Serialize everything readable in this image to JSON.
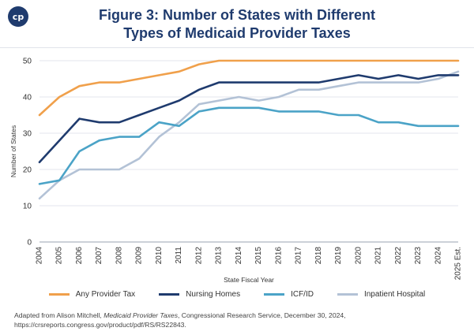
{
  "header": {
    "logo_text": "cp",
    "title_line1": "Figure 3: Number of States with Different",
    "title_line2": "Types of Medicaid Provider Taxes"
  },
  "chart_data": {
    "type": "line",
    "title": "Figure 3: Number of States with Different Types of Medicaid Provider Taxes",
    "xlabel": "State Fiscal Year",
    "ylabel": "Number of States",
    "ylim": [
      0,
      50
    ],
    "yticks": [
      0,
      10,
      20,
      30,
      40,
      50
    ],
    "grid": true,
    "legend": "bottom",
    "categories": [
      "2004",
      "2005",
      "2006",
      "2007",
      "2008",
      "2009",
      "2010",
      "2011",
      "2012",
      "2013",
      "2014",
      "2015",
      "2016",
      "2017",
      "2018",
      "2019",
      "2020",
      "2021",
      "2022",
      "2023",
      "2024",
      "2025 Est."
    ],
    "series": [
      {
        "name": "Any Provider Tax",
        "color": "#f0a04b",
        "values": [
          35,
          40,
          43,
          44,
          44,
          45,
          46,
          47,
          49,
          50,
          50,
          50,
          50,
          50,
          50,
          50,
          50,
          50,
          50,
          50,
          50,
          50
        ]
      },
      {
        "name": "Nursing Homes",
        "color": "#1f3b6e",
        "values": [
          22,
          28,
          34,
          33,
          33,
          35,
          37,
          39,
          42,
          44,
          44,
          44,
          44,
          44,
          44,
          45,
          46,
          45,
          46,
          45,
          46,
          46
        ]
      },
      {
        "name": "ICF/ID",
        "color": "#4ba3c7",
        "values": [
          16,
          17,
          25,
          28,
          29,
          29,
          33,
          32,
          36,
          37,
          37,
          37,
          36,
          36,
          36,
          35,
          35,
          33,
          33,
          32,
          32,
          32
        ]
      },
      {
        "name": "Inpatient Hospital",
        "color": "#b3c2d6",
        "values": [
          12,
          17,
          20,
          20,
          20,
          23,
          29,
          33,
          38,
          39,
          40,
          39,
          40,
          42,
          42,
          43,
          44,
          44,
          44,
          44,
          45,
          47
        ]
      }
    ]
  },
  "source": {
    "prefix": "Adapted from Alison Mitchell, ",
    "italic": "Medicaid Provider Taxes",
    "suffix": ", Congressional Research Service, December 30, 2024, https://crsreports.congress.gov/product/pdf/RS/RS22843."
  }
}
